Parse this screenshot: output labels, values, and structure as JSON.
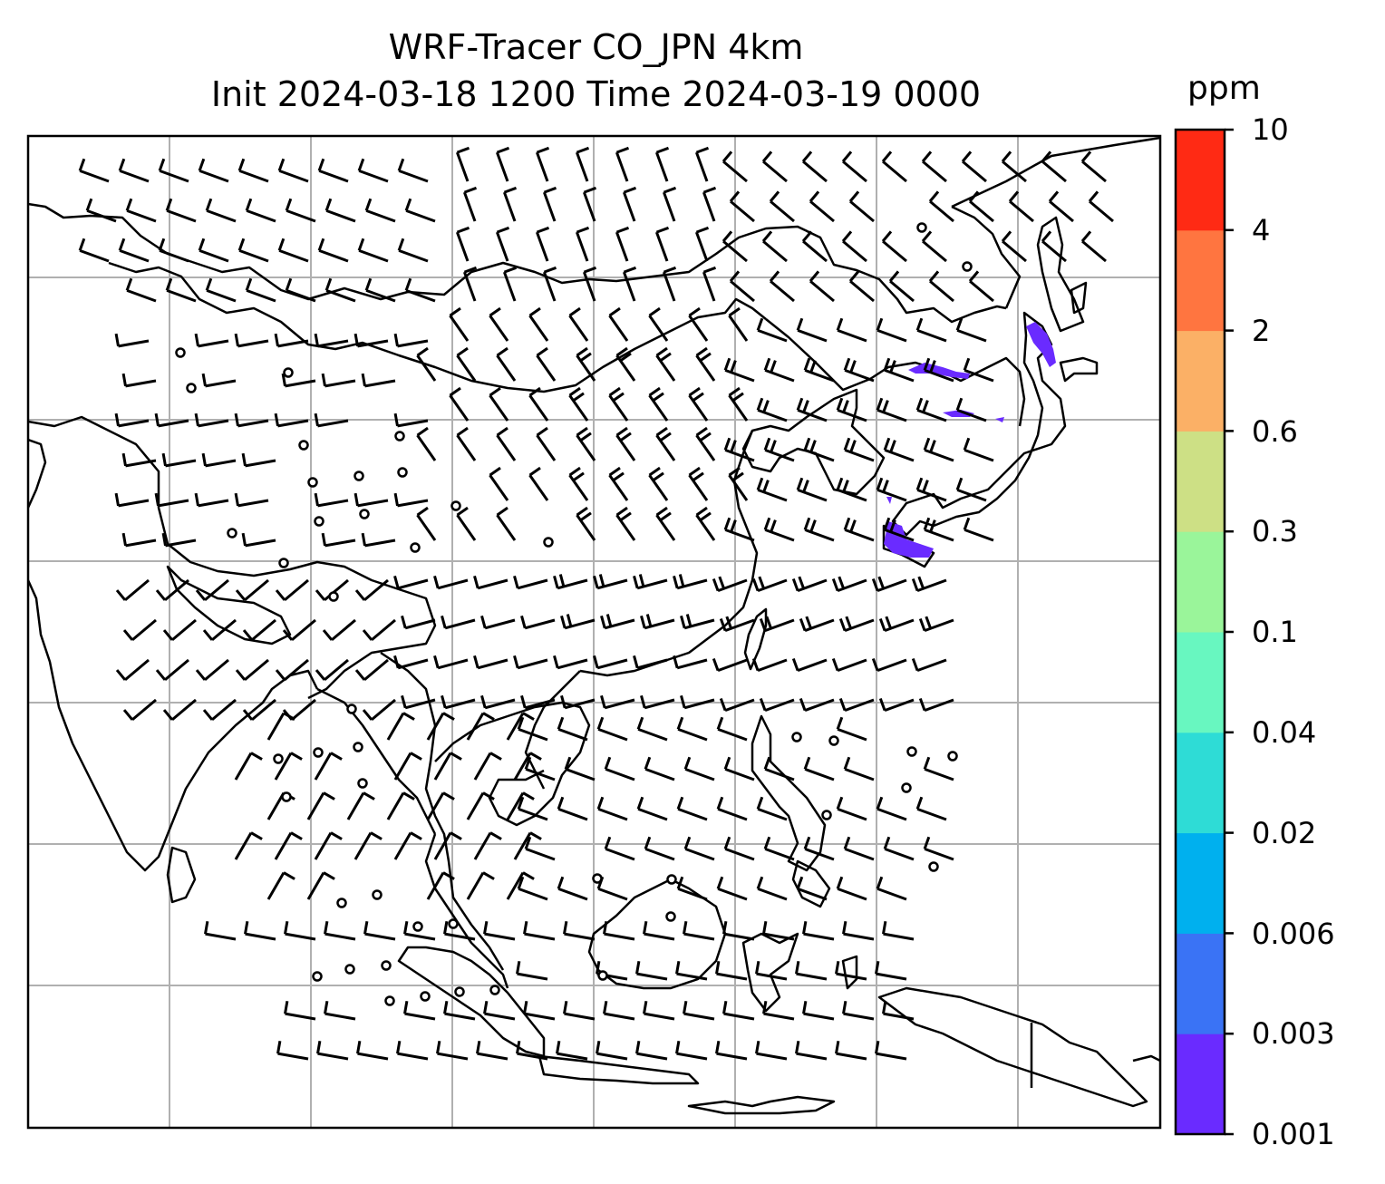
{
  "title": {
    "line1": "WRF-Tracer CO_JPN 4km",
    "line2": "Init 2024-03-18 1200 Time 2024-03-19 0000"
  },
  "colorbar": {
    "unit": "ppm",
    "ticks": [
      "0.001",
      "0.003",
      "0.006",
      "0.02",
      "0.04",
      "0.1",
      "0.3",
      "0.6",
      "2",
      "4",
      "10"
    ],
    "colors": [
      "#6a2bff",
      "#3a73f5",
      "#00b0ee",
      "#2edcd6",
      "#68f7c0",
      "#9af59a",
      "#cde085",
      "#fbb066",
      "#ff7540",
      "#ff2a14"
    ]
  },
  "map": {
    "gridlines": "on",
    "wind_barbs": "on",
    "tracer_color": "#6a2bff"
  }
}
